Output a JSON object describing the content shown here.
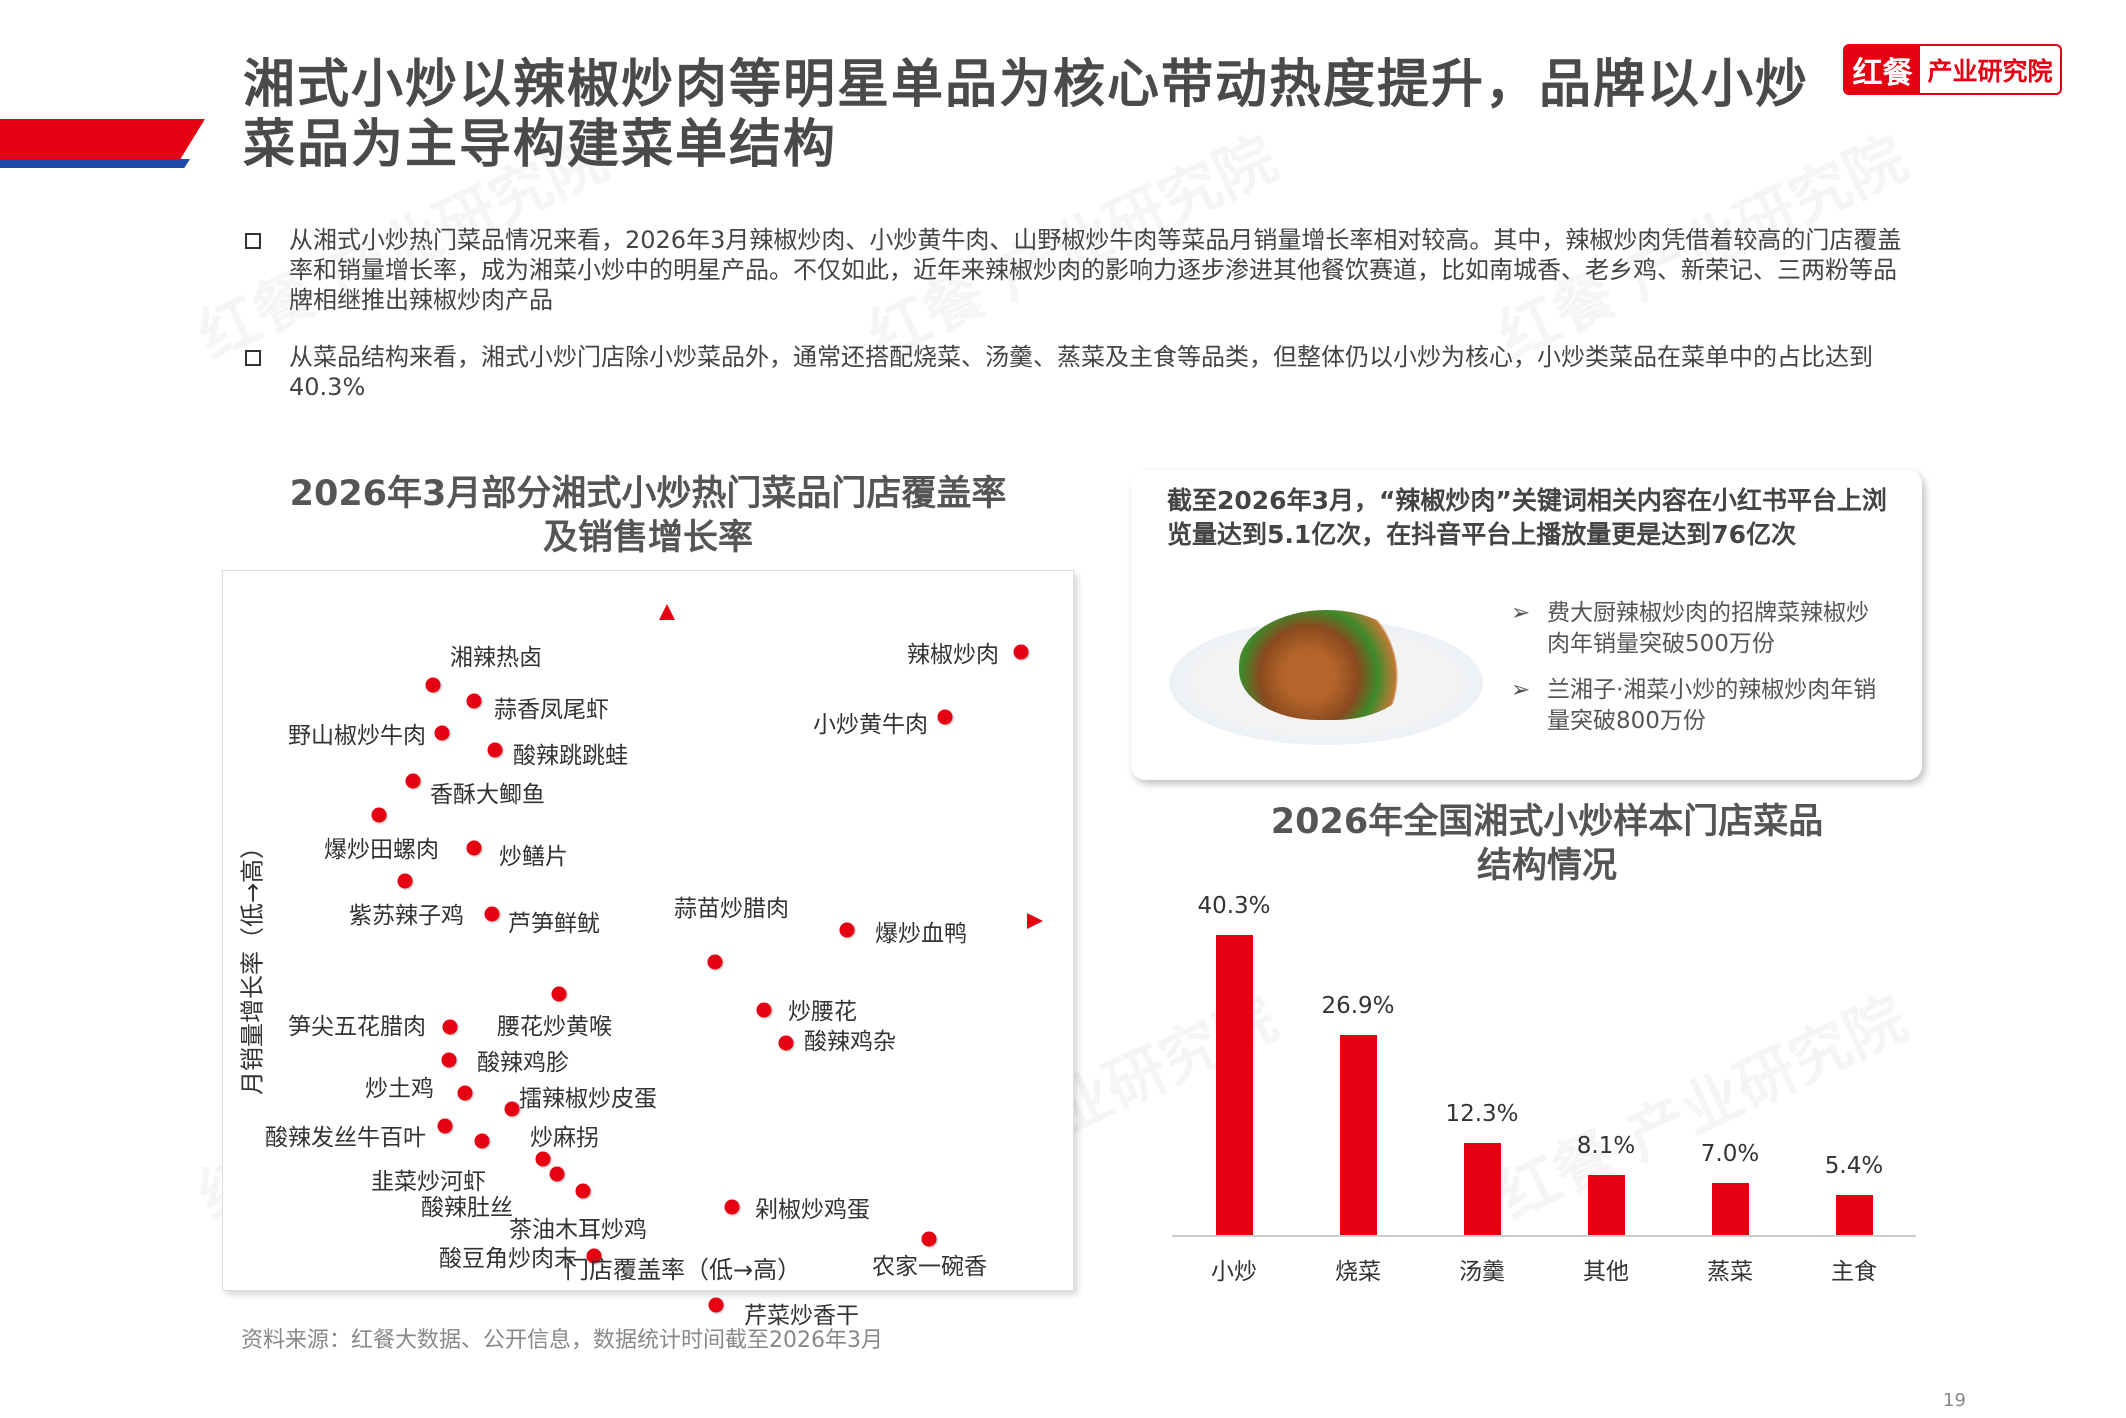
{
  "header": {
    "title": "湘式小炒以辣椒炒肉等明星单品为核心带动热度提升，品牌以小炒菜品为主导构建菜单结构",
    "logo_left": "红餐",
    "logo_right": "产业研究院"
  },
  "bullets": [
    "从湘式小炒热门菜品情况来看，2026年3月辣椒炒肉、小炒黄牛肉、山野椒炒牛肉等菜品月销量增长率相对较高。其中，辣椒炒肉凭借着较高的门店覆盖率和销量增长率，成为湘菜小炒中的明星产品。不仅如此，近年来辣椒炒肉的影响力逐步渗进其他餐饮赛道，比如南城香、老乡鸡、新荣记、三两粉等品牌相继推出辣椒炒肉产品",
    "从菜品结构来看，湘式小炒门店除小炒菜品外，通常还搭配烧菜、汤羹、蒸菜及主食等品类，但整体仍以小炒为核心，小炒类菜品在菜单中的占比达到40.3%"
  ],
  "scatter": {
    "title_line1": "2026年3月部分湘式小炒热门菜品门店覆盖率",
    "title_line2": "及销售增长率",
    "xlabel": "门店覆盖率（低→高）",
    "ylabel": "月销量增长率（低→高）",
    "items": [
      "湘辣热卤",
      "蒜香凤尾虾",
      "野山椒炒牛肉",
      "酸辣跳跳蛙",
      "香酥大鲫鱼",
      "爆炒田螺肉",
      "炒鳝片",
      "紫苏辣子鸡",
      "芦笋鲜鱿",
      "辣椒炒肉",
      "小炒黄牛肉",
      "蒜苗炒腊肉",
      "爆炒血鸭",
      "腰花炒黄喉",
      "笋尖五花腊肉",
      "酸辣鸡胗",
      "炒土鸡",
      "擂辣椒炒皮蛋",
      "酸辣发丝牛百叶",
      "炒麻拐",
      "韭菜炒河虾",
      "酸辣肚丝",
      "茶油木耳炒鸡",
      "酸豆角炒肉末",
      "炒腰花",
      "酸辣鸡杂",
      "剁椒炒鸡蛋",
      "农家一碗香",
      "芹菜炒香干"
    ]
  },
  "card": {
    "headline": "截至2026年3月，“辣椒炒肉”关键词相关内容在小红书平台上浏览量达到5.1亿次，在抖音平台上播放量更是达到76亿次",
    "points": [
      "费大厨辣椒炒肉的招牌菜辣椒炒肉年销量突破500万份",
      "兰湘子·湘菜小炒的辣椒炒肉年销量突破800万份"
    ],
    "arrow": "➢"
  },
  "chart_data": {
    "type": "bar",
    "title": "2026年全国湘式小炒样本门店菜品结构情况",
    "title_line1": "2026年全国湘式小炒样本门店菜品",
    "title_line2": "结构情况",
    "categories": [
      "小炒",
      "烧菜",
      "汤羹",
      "其他",
      "蒸菜",
      "主食"
    ],
    "values": [
      40.3,
      26.9,
      12.3,
      8.1,
      7.0,
      5.4
    ],
    "labels": [
      "40.3%",
      "26.9%",
      "12.3%",
      "8.1%",
      "7.0%",
      "5.4%"
    ],
    "xlabel": "",
    "ylabel": "",
    "ylim": [
      0,
      45
    ],
    "color": "#e60012"
  },
  "footer": {
    "source": "资料来源：红餐大数据、公开信息，数据统计时间截至2026年3月",
    "page": "19"
  }
}
